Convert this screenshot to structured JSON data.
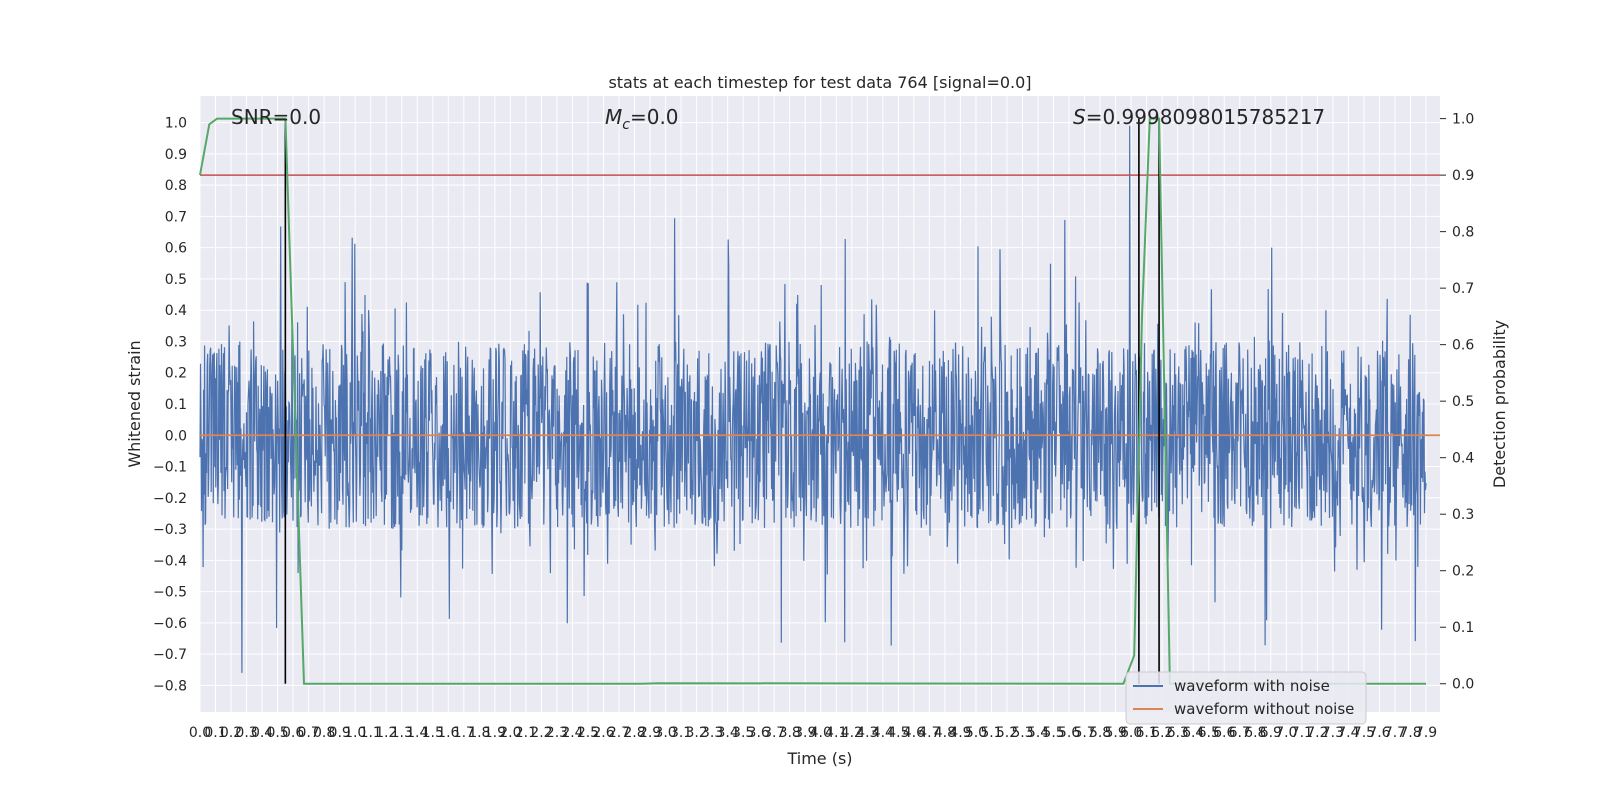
{
  "chart_data": {
    "type": "line",
    "title": "stats at each timestep for test data 764 [signal=0.0]",
    "xlabel": "Time (s)",
    "ylabel_left": "Whitened strain",
    "ylabel_right": "Detection probability",
    "xlim": [
      0.0,
      7.9
    ],
    "ylim_left": [
      -0.885,
      1.085
    ],
    "ylim_right": [
      -0.05,
      1.04
    ],
    "x_ticks": [
      "0.0",
      "0.1",
      "0.2",
      "0.3",
      "0.4",
      "0.5",
      "0.6",
      "0.7",
      "0.8",
      "0.9",
      "1.0",
      "1.1",
      "1.2",
      "1.3",
      "1.4",
      "1.5",
      "1.6",
      "1.7",
      "1.8",
      "1.9",
      "2.0",
      "2.1",
      "2.2",
      "2.3",
      "2.4",
      "2.5",
      "2.6",
      "2.7",
      "2.8",
      "2.9",
      "3.0",
      "3.1",
      "3.2",
      "3.3",
      "3.4",
      "3.5",
      "3.6",
      "3.7",
      "3.8",
      "3.9",
      "4.0",
      "4.1",
      "4.2",
      "4.3",
      "4.4",
      "4.5",
      "4.6",
      "4.7",
      "4.8",
      "4.9",
      "5.0",
      "5.1",
      "5.2",
      "5.3",
      "5.4",
      "5.5",
      "5.6",
      "5.7",
      "5.8",
      "5.9",
      "6.0",
      "6.1",
      "6.2",
      "6.3",
      "6.4",
      "6.5",
      "6.6",
      "6.7",
      "6.8",
      "6.9",
      "7.0",
      "7.1",
      "7.2",
      "7.3",
      "7.4",
      "7.5",
      "7.6",
      "7.7",
      "7.8",
      "7.9"
    ],
    "y_ticks_left": [
      "1.0",
      "0.9",
      "0.8",
      "0.7",
      "0.6",
      "0.5",
      "0.4",
      "0.3",
      "0.2",
      "0.1",
      "0.0",
      "−0.1",
      "−0.2",
      "−0.3",
      "−0.4",
      "−0.5",
      "−0.6",
      "−0.7",
      "−0.8"
    ],
    "y_ticks_right": [
      "1.0",
      "0.9",
      "0.8",
      "0.7",
      "0.6",
      "0.5",
      "0.4",
      "0.3",
      "0.2",
      "0.1",
      "0.0"
    ],
    "annotations": {
      "snr": "SNR=0.0",
      "mc_symbol": "M",
      "mc_sub": "c",
      "mc_value": "=0.0",
      "s_symbol": "S",
      "s_value": "=0.9998098015785217"
    },
    "threshold": 0.9,
    "vertical_markers": [
      0.55,
      6.05,
      6.18
    ],
    "series": [
      {
        "name": "waveform with noise",
        "color": "#4c72b0",
        "description_level": {
          "noise_band": [
            -0.3,
            0.3
          ],
          "peak_max": 0.99,
          "peak_min": -0.76
        }
      },
      {
        "name": "waveform without noise",
        "color": "#dd8452",
        "values_constant": 0.0
      },
      {
        "name": "detection probability",
        "color": "#55a868",
        "x": [
          0.0,
          0.06,
          0.11,
          0.55,
          0.67,
          2.85,
          2.95,
          5.95,
          6.02,
          6.07,
          6.12,
          6.18,
          6.25,
          7.9
        ],
        "y": [
          0.9,
          0.99,
          1.0,
          1.0,
          0.0,
          0.0,
          0.001,
          0.0,
          0.05,
          0.65,
          1.0,
          1.0,
          0.0,
          0.0
        ]
      }
    ],
    "legend_position": "lower-right",
    "colors": {
      "background": "#eaeaf2",
      "grid": "#ffffff",
      "threshold": "#c44e52",
      "marker": "#000000"
    }
  }
}
